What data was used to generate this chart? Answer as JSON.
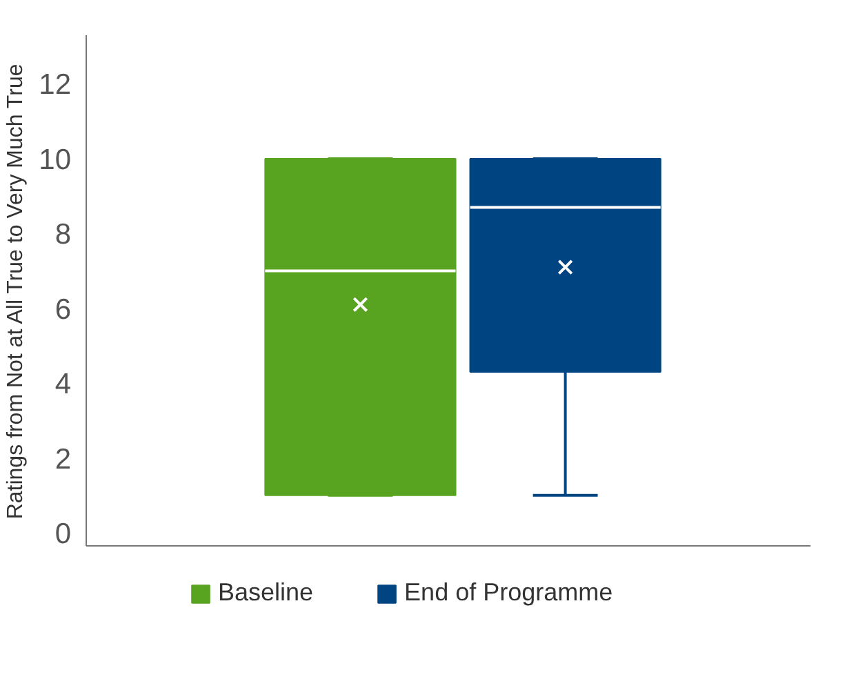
{
  "chart_data": {
    "type": "box",
    "ylabel": "Ratings from Not at All True to Very Much True",
    "categories": [
      null
    ],
    "series": [
      {
        "name": "Baseline",
        "color": "#58a31f",
        "boxes": [
          {
            "low": 1,
            "q1": 1,
            "median": 7,
            "q3": 10,
            "high": 10,
            "mean": 6.1
          }
        ]
      },
      {
        "name": "End of Programme",
        "color": "#004481",
        "boxes": [
          {
            "low": 1,
            "q1": 4.3,
            "median": 8.7,
            "q3": 10,
            "high": 10,
            "mean": 7.1
          }
        ]
      }
    ],
    "ylim": [
      -0.35,
      13.3
    ],
    "yticks": [
      0,
      2,
      4,
      6,
      8,
      10,
      12
    ],
    "tick_labels": "y",
    "grid": false,
    "legend": "bottom",
    "marker": "cross"
  }
}
